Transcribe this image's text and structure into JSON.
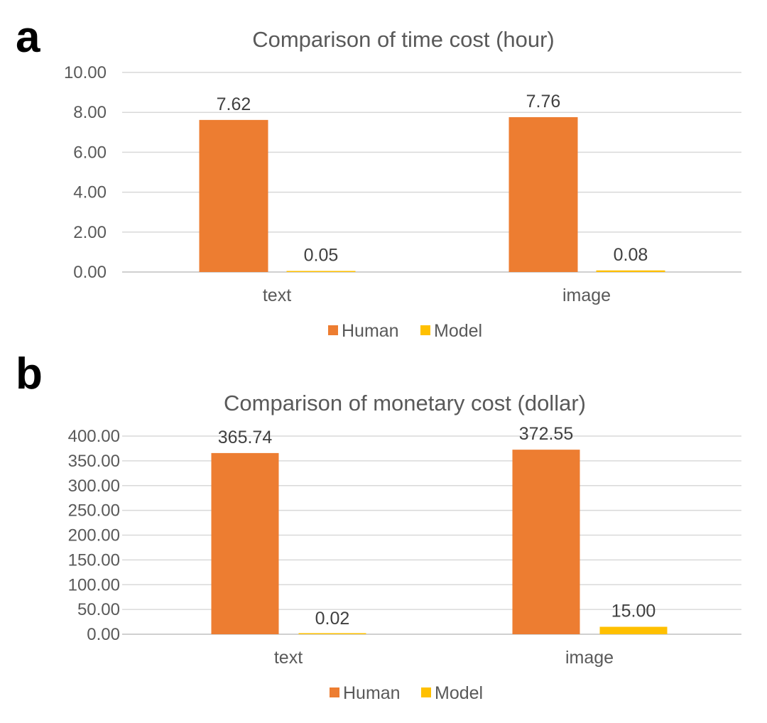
{
  "colors": {
    "human": "#ED7D31",
    "model": "#FFC000"
  },
  "chart_data": [
    {
      "panel": "a",
      "type": "bar",
      "title": "Comparison of time cost (hour)",
      "categories": [
        "text",
        "image"
      ],
      "series": [
        {
          "name": "Human",
          "values": [
            7.62,
            7.76
          ],
          "labels": [
            "7.62",
            "7.76"
          ]
        },
        {
          "name": "Model",
          "values": [
            0.05,
            0.08
          ],
          "labels": [
            "0.05",
            "0.08"
          ]
        }
      ],
      "ylim": [
        0,
        10
      ],
      "yticks": [
        "0.00",
        "2.00",
        "4.00",
        "6.00",
        "8.00",
        "10.00"
      ],
      "grid": true,
      "legend": "bottom"
    },
    {
      "panel": "b",
      "type": "bar",
      "title": "Comparison of monetary cost (dollar)",
      "categories": [
        "text",
        "image"
      ],
      "series": [
        {
          "name": "Human",
          "values": [
            365.74,
            372.55
          ],
          "labels": [
            "365.74",
            "372.55"
          ]
        },
        {
          "name": "Model",
          "values": [
            0.02,
            15.0
          ],
          "labels": [
            "0.02",
            "15.00"
          ]
        }
      ],
      "ylim": [
        0,
        400
      ],
      "yticks": [
        "0.00",
        "50.00",
        "100.00",
        "150.00",
        "200.00",
        "250.00",
        "300.00",
        "350.00",
        "400.00"
      ],
      "grid": true,
      "legend": "bottom"
    }
  ]
}
